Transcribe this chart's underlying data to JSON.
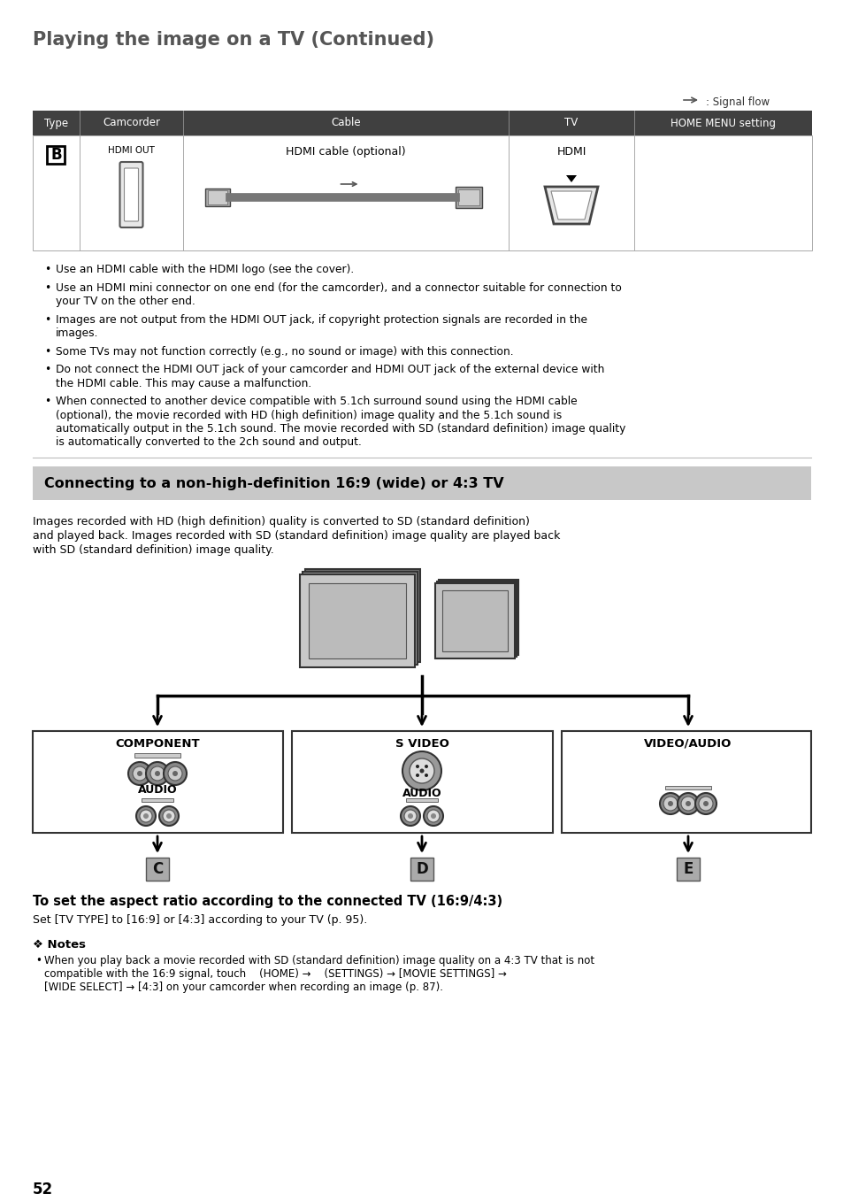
{
  "title": "Playing the image on a TV (Continued)",
  "page_bg": "#ffffff",
  "title_color": "#555555",
  "title_fontsize": 15,
  "header_bg": "#404040",
  "header_text_color": "#ffffff",
  "header_cols": [
    "Type",
    "Camcorder",
    "Cable",
    "TV",
    "HOME MENU setting"
  ],
  "col_lefts": [
    37,
    90,
    207,
    575,
    717
  ],
  "col_rights": [
    90,
    207,
    575,
    717,
    918
  ],
  "section2_bg": "#c8c8c8",
  "section2_title": "Connecting to a non-high-definition 16:9 (wide) or 4:3 TV",
  "body_fontsize": 9.0,
  "page_number": "52",
  "signal_flow_label": ": Signal flow",
  "bullets": [
    "Use an HDMI cable with the HDMI logo (see the cover).",
    "Use an HDMI mini connector on one end (for the camcorder), and a connector suitable for connection to\nyour TV on the other end.",
    "Images are not output from the HDMI OUT jack, if copyright protection signals are recorded in the\nimages.",
    "Some TVs may not function correctly (e.g., no sound or image) with this connection.",
    "Do not connect the HDMI OUT jack of your camcorder and HDMI OUT jack of the external device with\nthe HDMI cable. This may cause a malfunction.",
    "When connected to another device compatible with 5.1ch surround sound using the HDMI cable\n(optional), the movie recorded with HD (high definition) image quality and the 5.1ch sound is\nautomatically output in the 5.1ch sound. The movie recorded with SD (standard definition) image quality\nis automatically converted to the 2ch sound and output."
  ]
}
